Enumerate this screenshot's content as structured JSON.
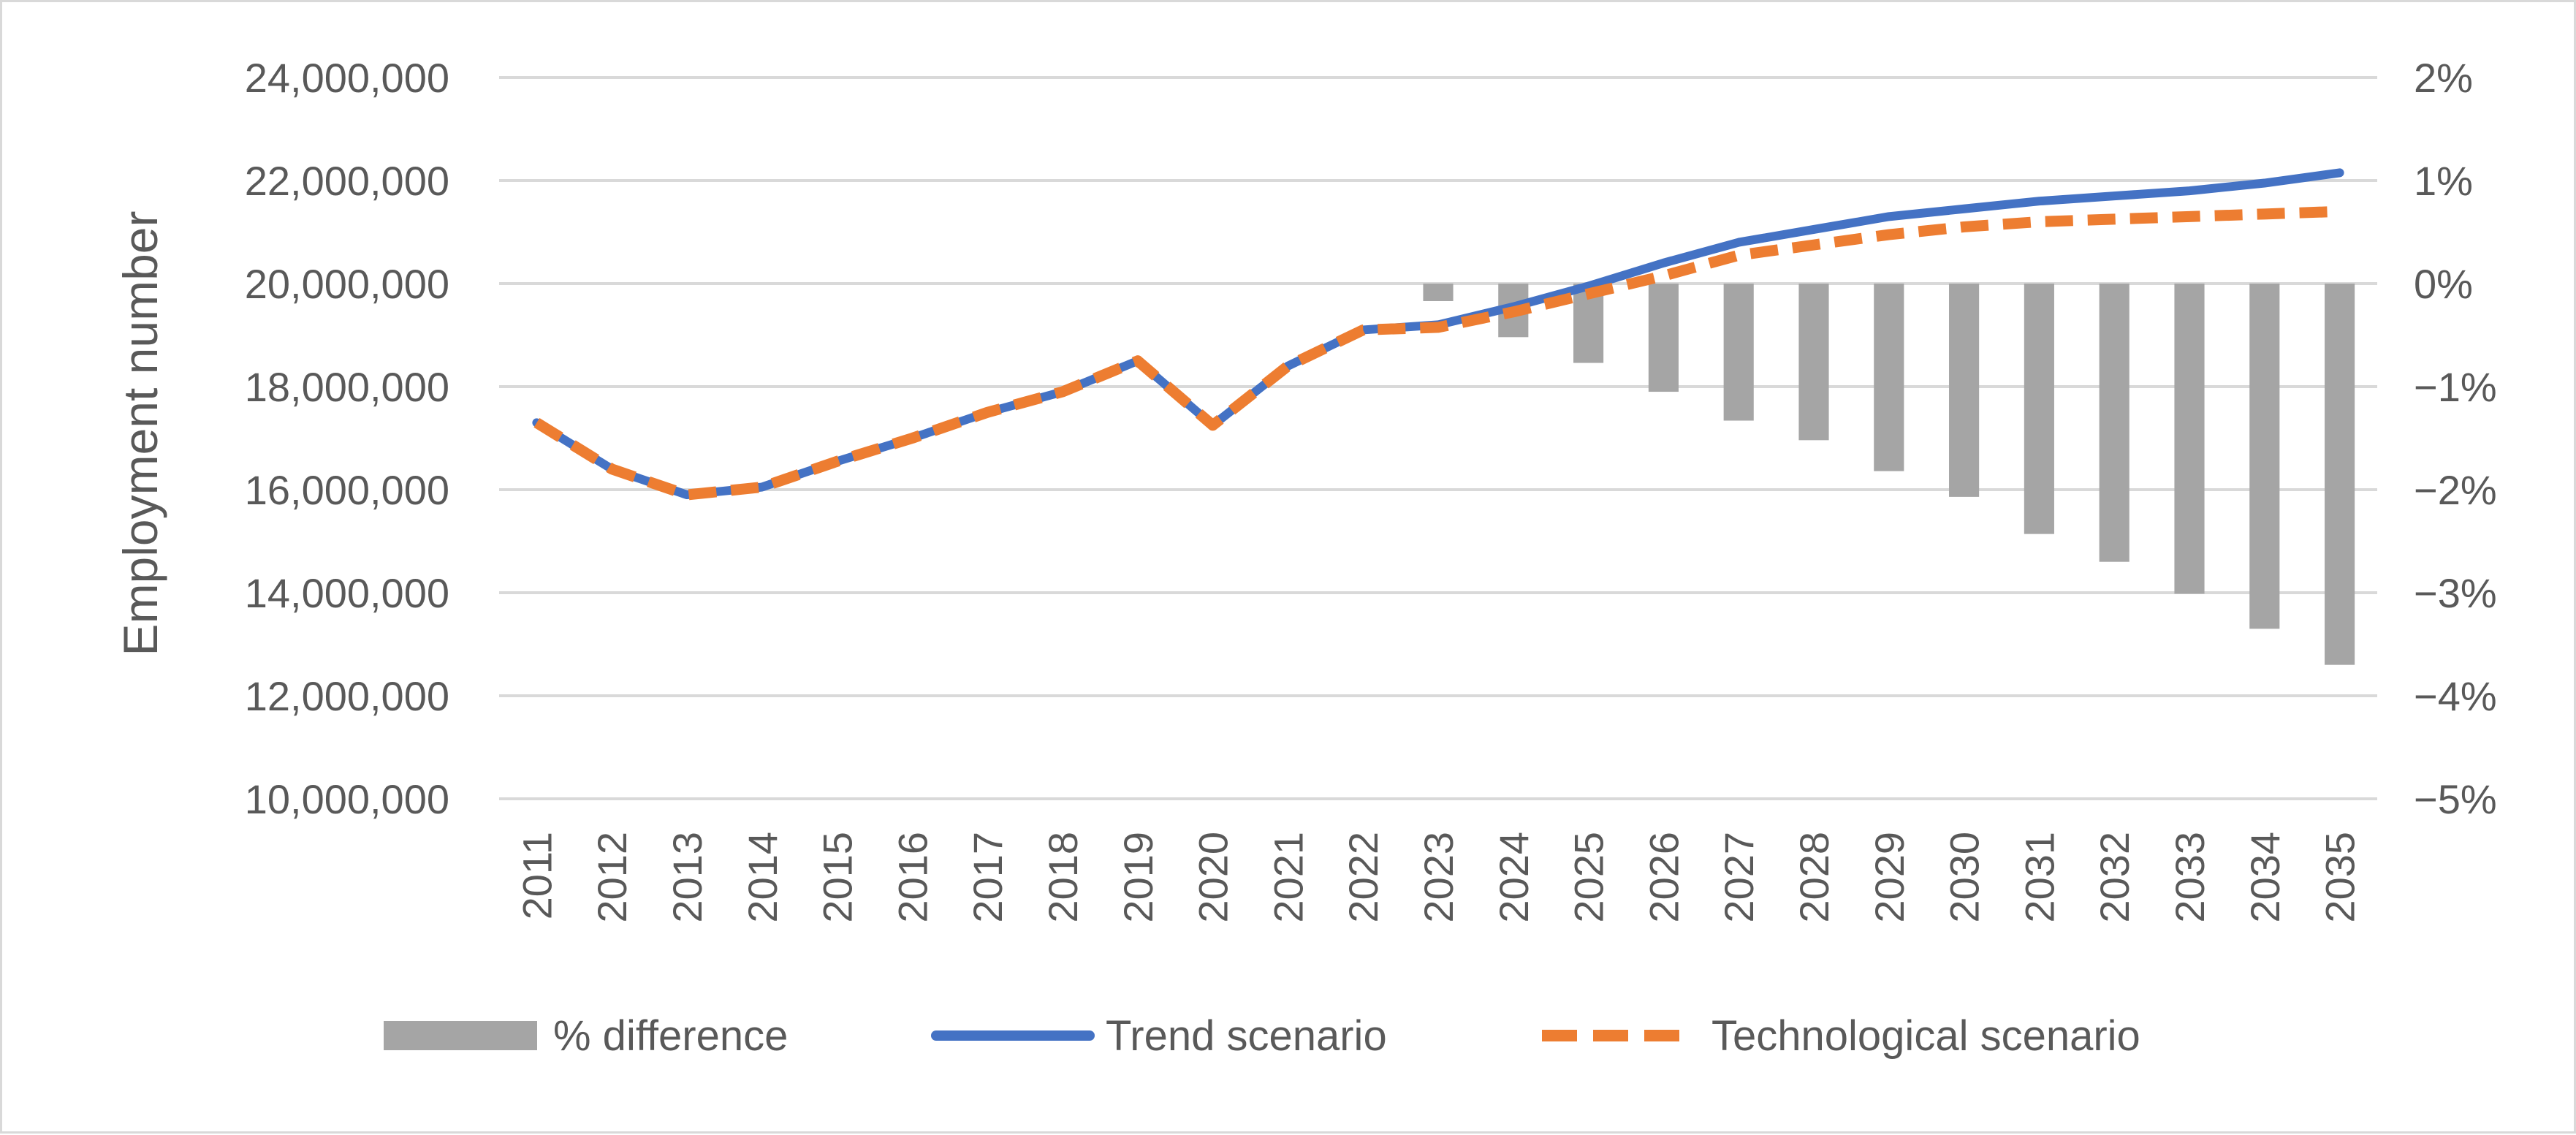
{
  "chart_data": {
    "type": "bar+line",
    "title": "",
    "xlabel": "",
    "ylabel": "Employment number",
    "ylim": [
      10000000,
      24000000
    ],
    "y2lim": [
      -5,
      2
    ],
    "grid": true,
    "legend": "bottom",
    "categories": [
      "2011",
      "2012",
      "2013",
      "2014",
      "2015",
      "2016",
      "2017",
      "2018",
      "2019",
      "2020",
      "2021",
      "2022",
      "2023",
      "2024",
      "2025",
      "2026",
      "2027",
      "2028",
      "2029",
      "2030",
      "2031",
      "2032",
      "2033",
      "2034",
      "2035"
    ],
    "y_ticks": [
      "10,000,000",
      "12,000,000",
      "14,000,000",
      "16,000,000",
      "18,000,000",
      "20,000,000",
      "22,000,000",
      "24,000,000"
    ],
    "y2_ticks": [
      "−5%",
      "−4%",
      "−3%",
      "−2%",
      "−1%",
      "0%",
      "1%",
      "2%"
    ],
    "series": [
      {
        "name": "% difference",
        "type": "bar",
        "axis": "right",
        "color": "#a5a5a5",
        "values": [
          0,
          0,
          0,
          0,
          0,
          0,
          0,
          0,
          0,
          0,
          0,
          0,
          -0.17,
          -0.52,
          -0.77,
          -1.05,
          -1.33,
          -1.52,
          -1.82,
          -2.07,
          -2.43,
          -2.7,
          -3.01,
          -3.35,
          -3.7
        ]
      },
      {
        "name": "Trend scenario",
        "type": "line",
        "axis": "left",
        "color": "#4472c4",
        "values": [
          17300000,
          16400000,
          15900000,
          16050000,
          16550000,
          17000000,
          17500000,
          17900000,
          18500000,
          17250000,
          18400000,
          19100000,
          19200000,
          19550000,
          19950000,
          20400000,
          20800000,
          21050000,
          21300000,
          21450000,
          21600000,
          21700000,
          21800000,
          21950000,
          22150000
        ]
      },
      {
        "name": "Technological scenario",
        "type": "line",
        "dashed": true,
        "axis": "left",
        "color": "#ed7d31",
        "values": [
          17300000,
          16400000,
          15900000,
          16050000,
          16550000,
          17000000,
          17500000,
          17900000,
          18500000,
          17250000,
          18400000,
          19100000,
          19150000,
          19450000,
          19800000,
          20150000,
          20550000,
          20750000,
          20950000,
          21100000,
          21200000,
          21250000,
          21300000,
          21350000,
          21400000
        ]
      }
    ]
  }
}
